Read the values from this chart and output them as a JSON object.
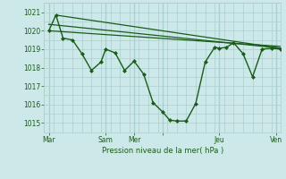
{
  "background_color": "#cce8e8",
  "grid_color": "#aacfcf",
  "line_color": "#1a5c1a",
  "xlabel": "Pression niveau de la mer( hPa )",
  "ylim": [
    1014.5,
    1021.5
  ],
  "xlim": [
    0,
    100
  ],
  "yticks": [
    1015,
    1016,
    1017,
    1018,
    1019,
    1020,
    1021
  ],
  "xtick_positions": [
    2,
    26,
    38,
    50,
    74,
    98
  ],
  "xtick_labels": [
    "Mar",
    "Sam",
    "Mer",
    "",
    "Jeu",
    "Ven"
  ],
  "day_lines": [
    2,
    26,
    38,
    50,
    74,
    98
  ],
  "main_series_x": [
    2,
    5,
    8,
    12,
    16,
    20,
    24,
    26,
    30,
    34,
    38,
    42,
    46,
    50,
    53,
    56,
    60,
    64,
    68,
    72,
    74,
    77,
    80,
    84,
    88,
    92,
    96,
    100
  ],
  "main_series_y": [
    1020.0,
    1020.85,
    1019.6,
    1019.5,
    1018.75,
    1017.85,
    1018.3,
    1019.0,
    1018.8,
    1017.85,
    1018.35,
    1017.65,
    1016.1,
    1015.6,
    1015.15,
    1015.1,
    1015.1,
    1016.05,
    1018.3,
    1019.1,
    1019.05,
    1019.1,
    1019.35,
    1018.75,
    1017.5,
    1019.0,
    1019.05,
    1019.0
  ],
  "trend1_x": [
    2,
    100
  ],
  "trend1_y": [
    1020.35,
    1019.05
  ],
  "trend2_x": [
    5,
    100
  ],
  "trend2_y": [
    1020.85,
    1019.05
  ],
  "trend3_x": [
    2,
    100
  ],
  "trend3_y": [
    1020.0,
    1019.15
  ]
}
